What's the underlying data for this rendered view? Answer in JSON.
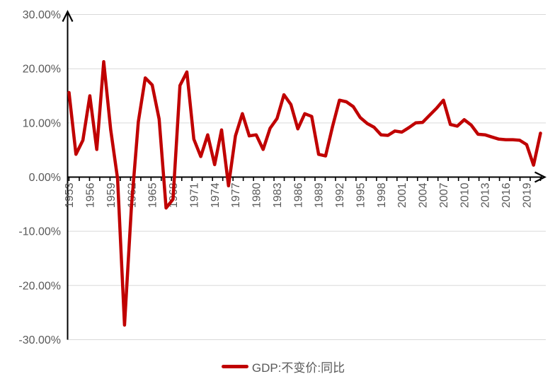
{
  "chart_data": {
    "type": "line",
    "title": "",
    "legend": "GDP:不变价:同比",
    "legend_position": "bottom",
    "grid": true,
    "colors": {
      "series": "#C00000",
      "grid": "#D9D9D9",
      "axis": "#000000",
      "tick_label": "#595959"
    },
    "ylim": [
      -30,
      30
    ],
    "y_tick_labels": [
      "30.00%",
      "20.00%",
      "10.00%",
      "0.00%",
      "-10.00%",
      "-20.00%",
      "-30.00%"
    ],
    "y_tick_values": [
      30,
      20,
      10,
      0,
      -10,
      -20,
      -30
    ],
    "x_tick_labels": [
      "1953",
      "1956",
      "1959",
      "1962",
      "1965",
      "1968",
      "1971",
      "1974",
      "1977",
      "1980",
      "1983",
      "1986",
      "1989",
      "1992",
      "1995",
      "1998",
      "2001",
      "2004",
      "2007",
      "2010",
      "2013",
      "2016",
      "2019"
    ],
    "x": [
      1953,
      1954,
      1955,
      1956,
      1957,
      1958,
      1959,
      1960,
      1961,
      1962,
      1963,
      1964,
      1965,
      1966,
      1967,
      1968,
      1969,
      1970,
      1971,
      1972,
      1973,
      1974,
      1975,
      1976,
      1977,
      1978,
      1979,
      1980,
      1981,
      1982,
      1983,
      1984,
      1985,
      1986,
      1987,
      1988,
      1989,
      1990,
      1991,
      1992,
      1993,
      1994,
      1995,
      1996,
      1997,
      1998,
      1999,
      2000,
      2001,
      2002,
      2003,
      2004,
      2005,
      2006,
      2007,
      2008,
      2009,
      2010,
      2011,
      2012,
      2013,
      2014,
      2015,
      2016,
      2017,
      2018,
      2019,
      2020,
      2021
    ],
    "series": [
      {
        "name": "GDP:不变价:同比",
        "unit": "%",
        "values": [
          15.6,
          4.2,
          6.8,
          15.0,
          5.1,
          21.3,
          8.8,
          -0.3,
          -27.3,
          -5.6,
          10.2,
          18.3,
          17.0,
          10.7,
          -5.7,
          -4.1,
          16.9,
          19.4,
          7.0,
          3.8,
          7.8,
          2.3,
          8.7,
          -1.6,
          7.6,
          11.7,
          7.6,
          7.8,
          5.1,
          9.0,
          10.8,
          15.2,
          13.4,
          8.9,
          11.7,
          11.2,
          4.2,
          3.9,
          9.3,
          14.2,
          13.9,
          13.0,
          11.0,
          9.9,
          9.2,
          7.8,
          7.7,
          8.5,
          8.3,
          9.1,
          10.0,
          10.1,
          11.4,
          12.7,
          14.2,
          9.7,
          9.4,
          10.6,
          9.6,
          7.9,
          7.8,
          7.4,
          7.0,
          6.9,
          6.9,
          6.8,
          6.0,
          2.2,
          8.1
        ]
      }
    ]
  }
}
